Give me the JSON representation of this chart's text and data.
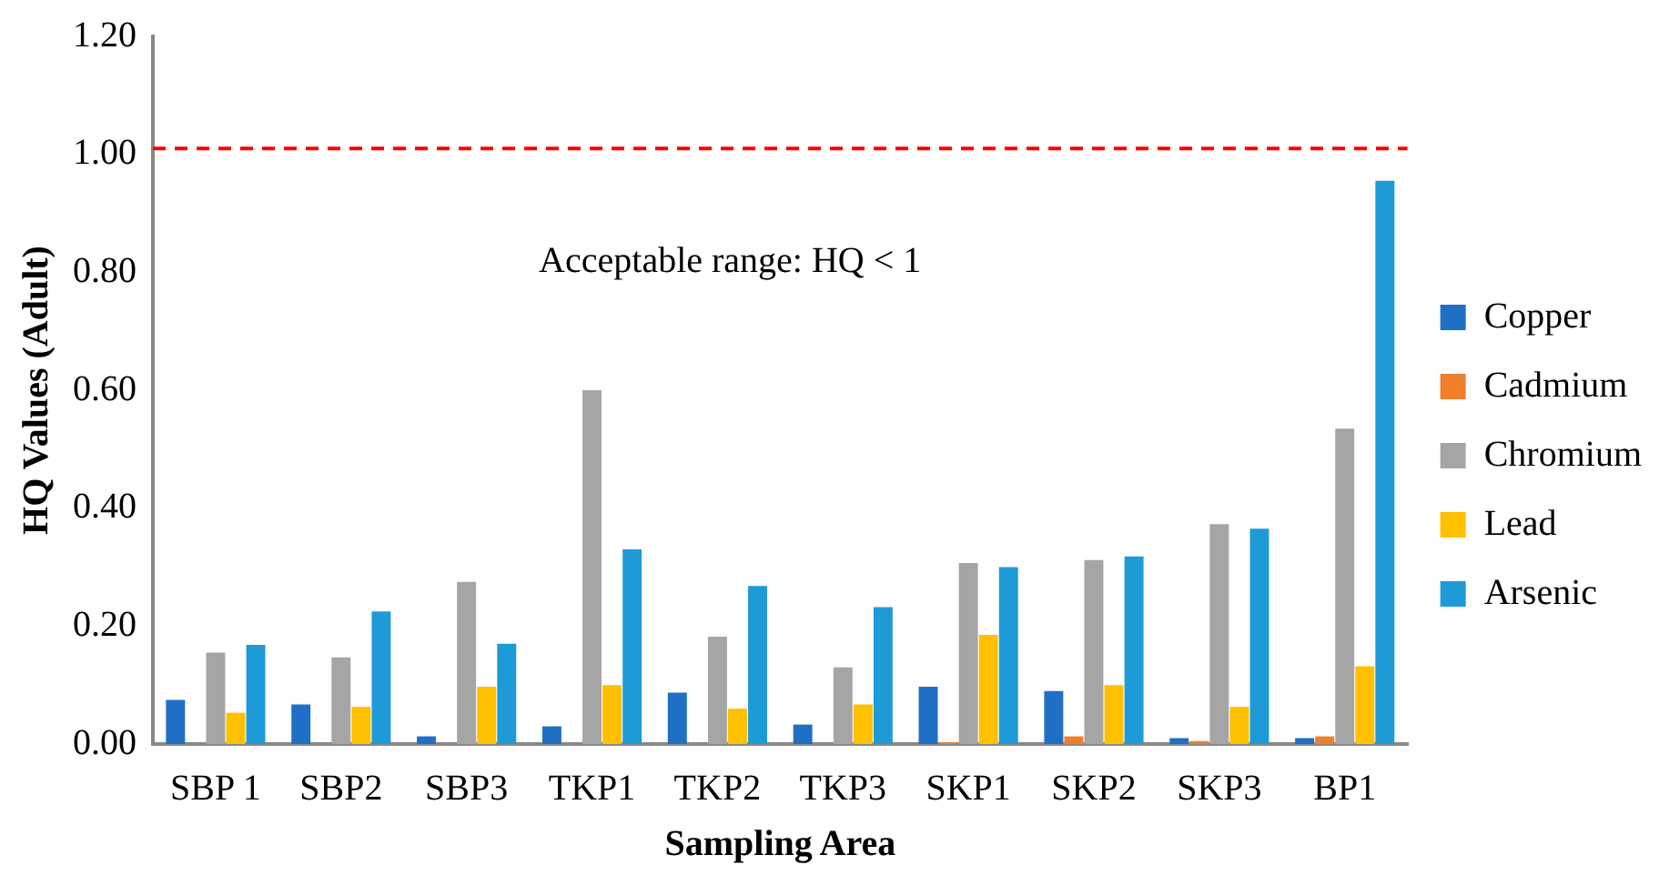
{
  "chart_data": {
    "type": "bar",
    "xlabel": "Sampling Area",
    "ylabel": "HQ Values (Adult)",
    "categories": [
      "SBP 1",
      "SBP2",
      "SBP3",
      "TKP1",
      "TKP2",
      "TKP3",
      "SKP1",
      "SKP2",
      "SKP3",
      "BP1"
    ],
    "series": [
      {
        "name": "Copper",
        "color": "#1f6fc5",
        "values": [
          0.075,
          0.067,
          0.013,
          0.03,
          0.087,
          0.033,
          0.097,
          0.09,
          0.01,
          0.01
        ]
      },
      {
        "name": "Cadmium",
        "color": "#f07f2c",
        "values": [
          0,
          0,
          0,
          0,
          0,
          0,
          0.003,
          0.013,
          0.005,
          0.013
        ]
      },
      {
        "name": "Chromium",
        "color": "#a5a5a5",
        "values": [
          0.155,
          0.147,
          0.275,
          0.6,
          0.182,
          0.13,
          0.307,
          0.312,
          0.373,
          0.535
        ]
      },
      {
        "name": "Lead",
        "color": "#ffc000",
        "values": [
          0.053,
          0.063,
          0.097,
          0.1,
          0.06,
          0.067,
          0.185,
          0.1,
          0.063,
          0.132
        ]
      },
      {
        "name": "Arsenic",
        "color": "#1e9bd7",
        "values": [
          0.168,
          0.225,
          0.17,
          0.33,
          0.268,
          0.232,
          0.3,
          0.318,
          0.365,
          0.955
        ]
      }
    ],
    "ylim": [
      0,
      1.2
    ],
    "yticks": [
      {
        "value": 0,
        "label": "0.00"
      },
      {
        "value": 0.2,
        "label": "0.20"
      },
      {
        "value": 0.4,
        "label": "0.40"
      },
      {
        "value": 0.6,
        "label": "0.60"
      },
      {
        "value": 0.8,
        "label": "0.80"
      },
      {
        "value": 1,
        "label": "1.00"
      },
      {
        "value": 1.2,
        "label": "1.20"
      }
    ],
    "ref_lines": [
      {
        "axis": "y",
        "value": 1.01,
        "color": "#ff0000",
        "line_style": "dashed"
      }
    ],
    "annotations": [
      "Acceptable range: HQ < 1"
    ],
    "grid": false,
    "legend": "right"
  }
}
